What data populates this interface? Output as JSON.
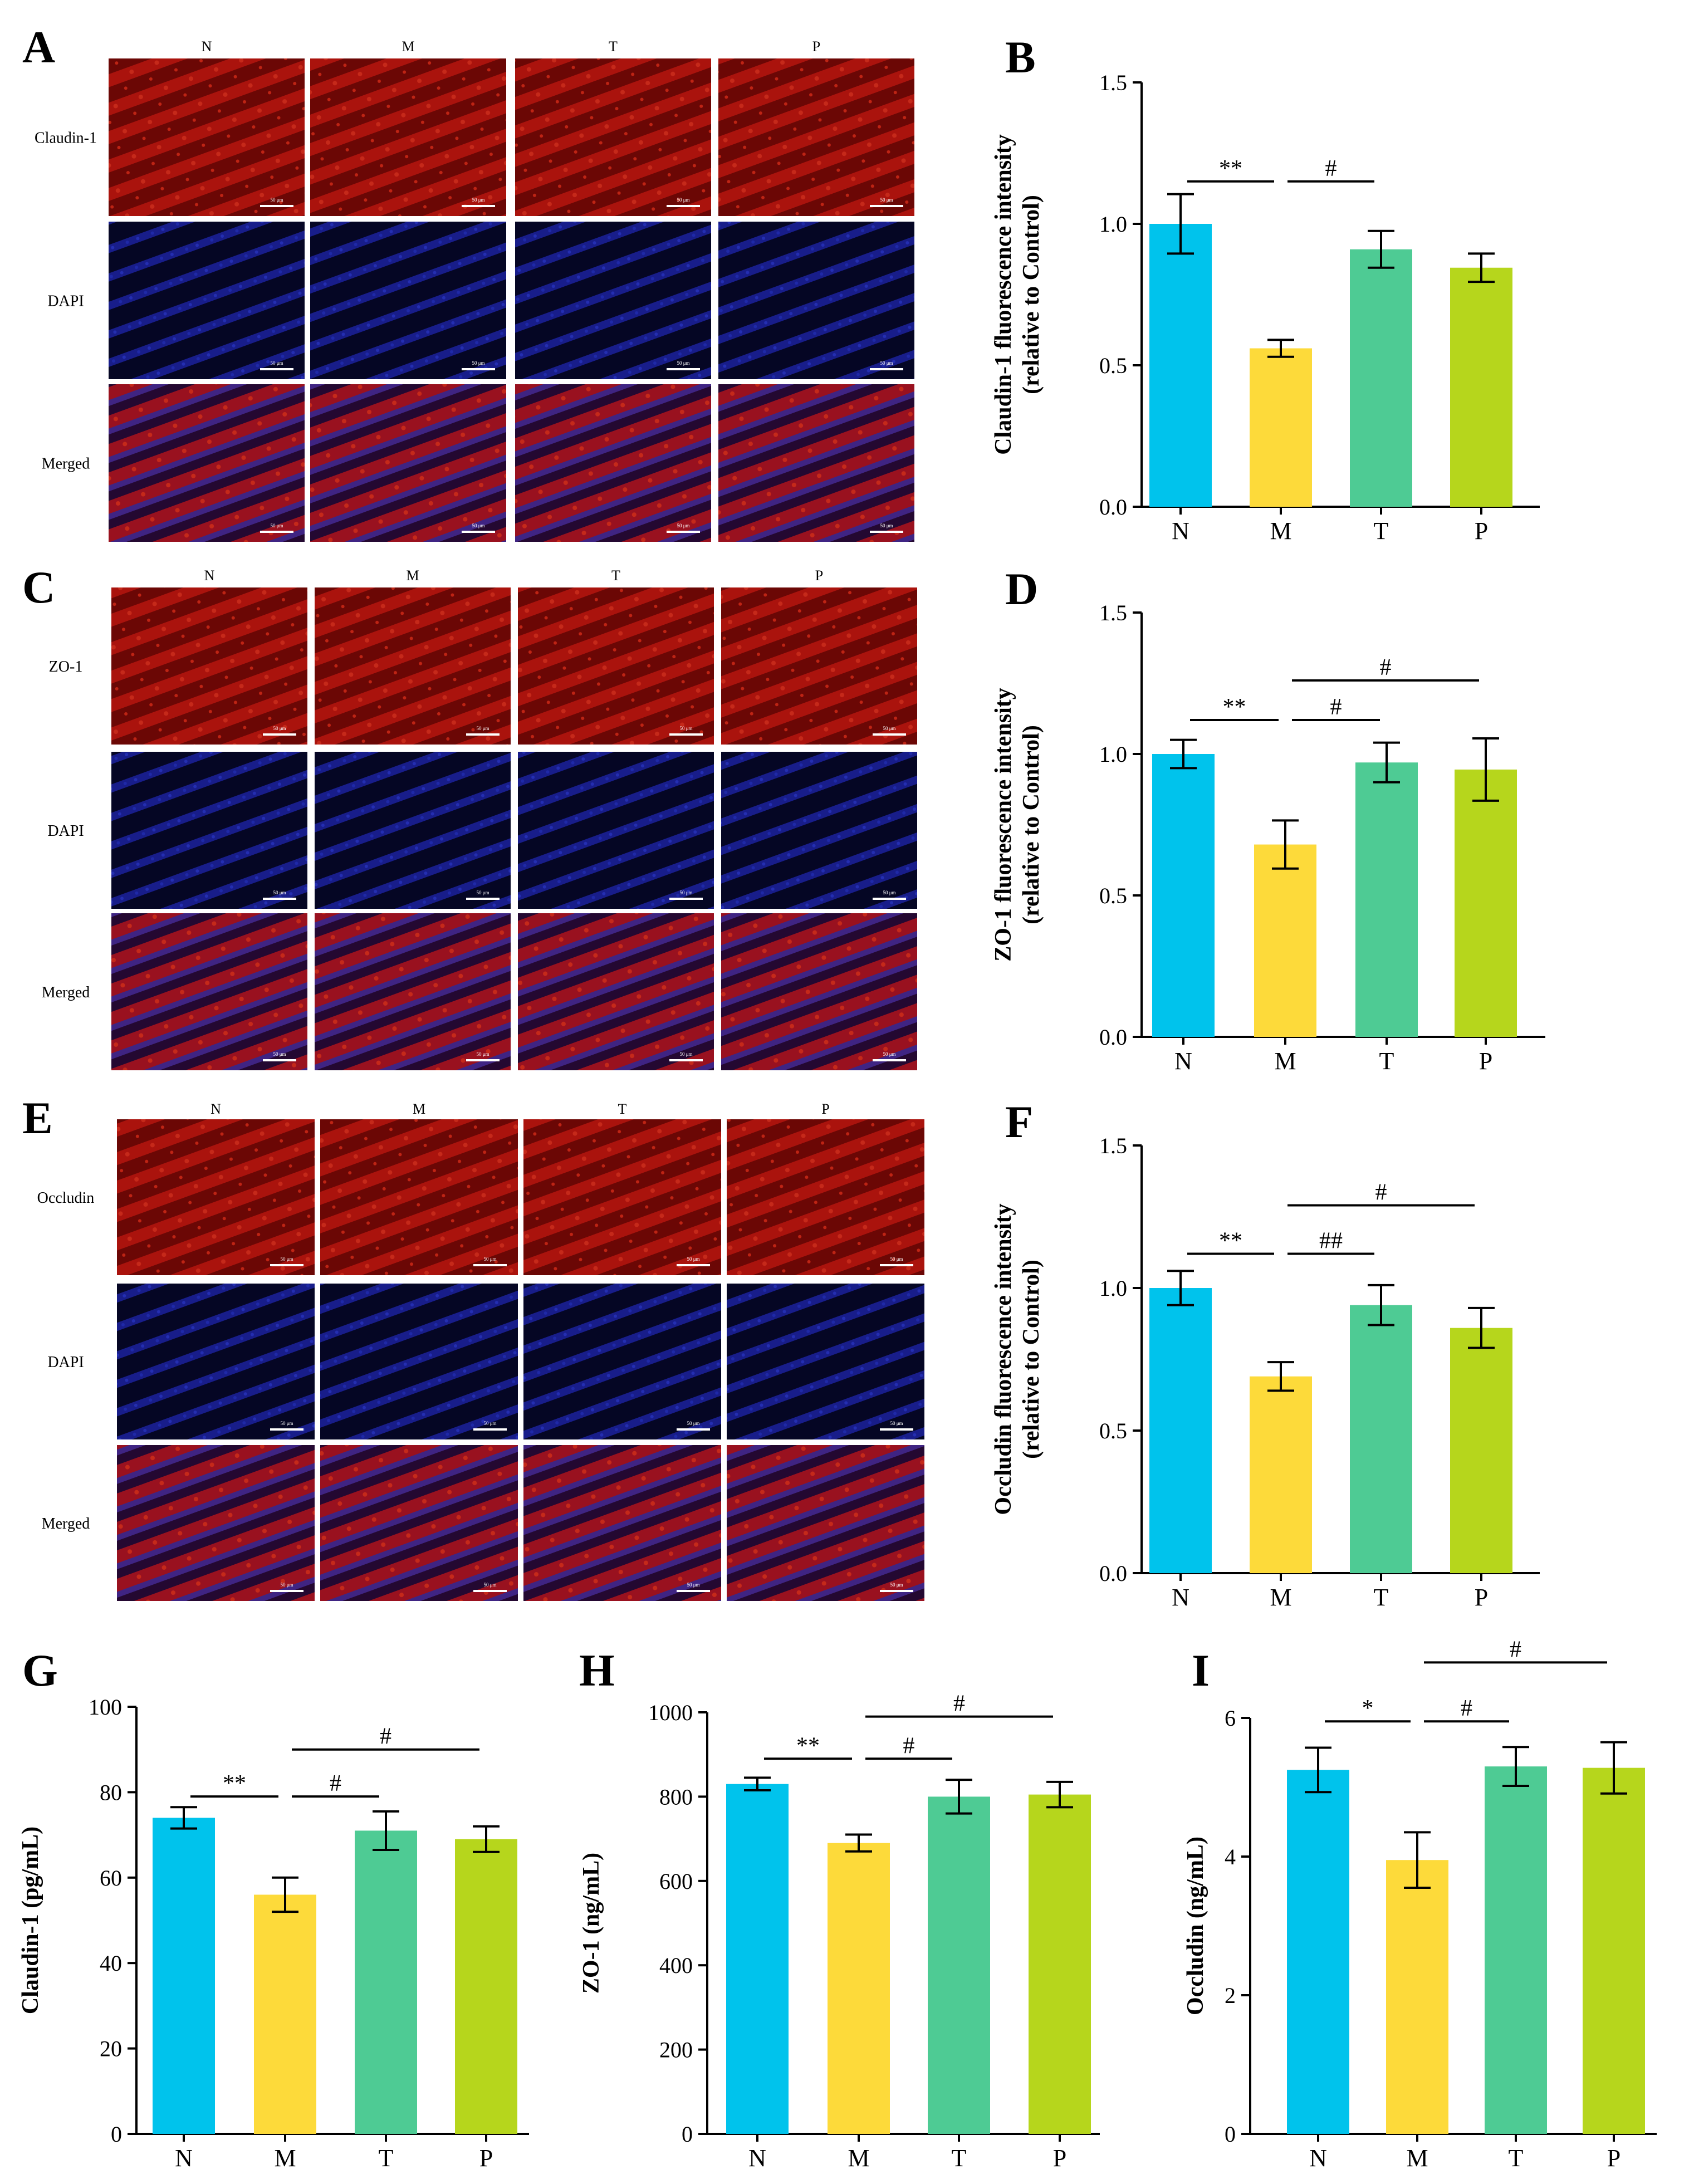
{
  "figure": {
    "micrograph_blocks": [
      {
        "letter": "A",
        "columns": [
          "N",
          "M",
          "T",
          "P"
        ],
        "rows": [
          "Claudin-1",
          "DAPI",
          "Merged"
        ],
        "scale_bar": "50 μm"
      },
      {
        "letter": "C",
        "columns": [
          "N",
          "M",
          "T",
          "P"
        ],
        "rows": [
          "ZO-1",
          "DAPI",
          "Merged"
        ],
        "scale_bar": "50 μm"
      },
      {
        "letter": "E",
        "columns": [
          "N",
          "M",
          "T",
          "P"
        ],
        "rows": [
          "Occludin",
          "DAPI",
          "Merged"
        ],
        "scale_bar": "50 μm"
      }
    ]
  },
  "colors": {
    "N": "#00c3ec",
    "M": "#fdda3a",
    "T": "#4ecb94",
    "P": "#b6d61c",
    "claudin_stain": "#b40f0c",
    "dapi_stain": "#161a86",
    "merged_stain": "#7d1a4c"
  },
  "chart_data": [
    {
      "panel": "B",
      "type": "bar",
      "title": "",
      "xlabel": "",
      "ylabel": "Claudin-1 fluorescence intensity",
      "ylabel2": "(relative to Control)",
      "categories": [
        "N",
        "M",
        "T",
        "P"
      ],
      "values": [
        1.0,
        0.56,
        0.91,
        0.845
      ],
      "errors": [
        0.105,
        0.03,
        0.065,
        0.05
      ],
      "ylim": [
        0,
        1.5
      ],
      "yticks": [
        "0.0",
        "0.5",
        "1.0",
        "1.5"
      ],
      "annotations": [
        {
          "label": "**",
          "from": "N",
          "to": "M",
          "level": 1.15
        },
        {
          "label": "#",
          "from": "M",
          "to": "T",
          "level": 1.15
        }
      ]
    },
    {
      "panel": "D",
      "type": "bar",
      "title": "",
      "xlabel": "",
      "ylabel": "ZO-1 fluorescence intensity",
      "ylabel2": "(relative to Control)",
      "categories": [
        "N",
        "M",
        "T",
        "P"
      ],
      "values": [
        1.0,
        0.68,
        0.97,
        0.945
      ],
      "errors": [
        0.05,
        0.085,
        0.07,
        0.11
      ],
      "ylim": [
        0,
        1.5
      ],
      "yticks": [
        "0.0",
        "0.5",
        "1.0",
        "1.5"
      ],
      "annotations": [
        {
          "label": "**",
          "from": "N",
          "to": "M",
          "level": 1.12
        },
        {
          "label": "#",
          "from": "M",
          "to": "T",
          "level": 1.12
        },
        {
          "label": "#",
          "from": "M",
          "to": "P",
          "level": 1.26
        }
      ]
    },
    {
      "panel": "F",
      "type": "bar",
      "title": "",
      "xlabel": "",
      "ylabel": "Occludin fluorescence intensity",
      "ylabel2": "(relative to Control)",
      "categories": [
        "N",
        "M",
        "T",
        "P"
      ],
      "values": [
        1.0,
        0.69,
        0.94,
        0.86
      ],
      "errors": [
        0.06,
        0.05,
        0.07,
        0.07
      ],
      "ylim": [
        0,
        1.5
      ],
      "yticks": [
        "0.0",
        "0.5",
        "1.0",
        "1.5"
      ],
      "annotations": [
        {
          "label": "**",
          "from": "N",
          "to": "M",
          "level": 1.12
        },
        {
          "label": "##",
          "from": "M",
          "to": "T",
          "level": 1.12
        },
        {
          "label": "#",
          "from": "M",
          "to": "P",
          "level": 1.29
        }
      ]
    },
    {
      "panel": "G",
      "type": "bar",
      "title": "",
      "xlabel": "",
      "ylabel": "Claudin-1 (pg/mL)",
      "categories": [
        "N",
        "M",
        "T",
        "P"
      ],
      "values": [
        74,
        56,
        71,
        69
      ],
      "errors": [
        2.5,
        4,
        4.5,
        3
      ],
      "ylim": [
        0,
        100
      ],
      "yticks": [
        "0",
        "20",
        "40",
        "60",
        "80",
        "100"
      ],
      "annotations": [
        {
          "label": "**",
          "from": "N",
          "to": "M",
          "level": 79
        },
        {
          "label": "#",
          "from": "M",
          "to": "T",
          "level": 79
        },
        {
          "label": "#",
          "from": "M",
          "to": "P",
          "level": 90
        }
      ]
    },
    {
      "panel": "H",
      "type": "bar",
      "title": "",
      "xlabel": "",
      "ylabel": "ZO-1 (ng/mL)",
      "categories": [
        "N",
        "M",
        "T",
        "P"
      ],
      "values": [
        830,
        690,
        800,
        805
      ],
      "errors": [
        15,
        20,
        40,
        30
      ],
      "ylim": [
        0,
        1000
      ],
      "yticks": [
        "0",
        "200",
        "400",
        "600",
        "800",
        "1000"
      ],
      "annotations": [
        {
          "label": "**",
          "from": "N",
          "to": "M",
          "level": 890
        },
        {
          "label": "#",
          "from": "M",
          "to": "T",
          "level": 890
        },
        {
          "label": "#",
          "from": "M",
          "to": "P",
          "level": 990
        }
      ]
    },
    {
      "panel": "I",
      "type": "bar",
      "title": "",
      "xlabel": "",
      "ylabel": "Occludin (ng/mL)",
      "categories": [
        "N",
        "M",
        "T",
        "P"
      ],
      "values": [
        5.25,
        3.95,
        5.3,
        5.28
      ],
      "errors": [
        0.32,
        0.4,
        0.28,
        0.37
      ],
      "ylim": [
        0,
        6
      ],
      "yticks": [
        "0",
        "2",
        "4",
        "6"
      ],
      "annotations": [
        {
          "label": "*",
          "from": "N",
          "to": "M",
          "level": 5.95
        },
        {
          "label": "#",
          "from": "M",
          "to": "T",
          "level": 5.95
        },
        {
          "label": "#",
          "from": "M",
          "to": "P",
          "level": 6.8
        }
      ]
    }
  ]
}
